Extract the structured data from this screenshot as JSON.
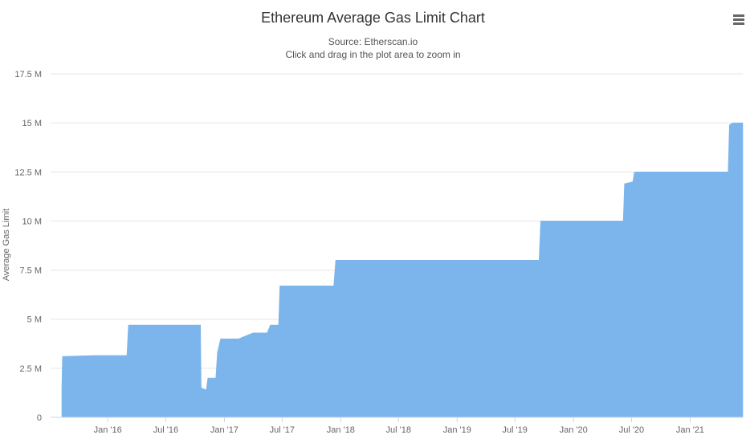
{
  "chart_data": {
    "type": "area",
    "title": "Ethereum Average Gas Limit Chart",
    "subtitle": [
      "Source: Etherscan.io",
      "Click and drag in the plot area to zoom in"
    ],
    "xlabel": "",
    "ylabel": "Average Gas Limit",
    "ylim": [
      0,
      17500000
    ],
    "xlim": [
      "2015-08-10",
      "2021-06-15"
    ],
    "grid": "horizontal",
    "legend": "none",
    "color": "#7cb5ec",
    "y_ticks": [
      {
        "value": 0,
        "label": "0"
      },
      {
        "value": 2500000,
        "label": "2.5 M"
      },
      {
        "value": 5000000,
        "label": "5 M"
      },
      {
        "value": 7500000,
        "label": "7.5 M"
      },
      {
        "value": 10000000,
        "label": "10 M"
      },
      {
        "value": 12500000,
        "label": "12.5 M"
      },
      {
        "value": 15000000,
        "label": "15 M"
      },
      {
        "value": 17500000,
        "label": "17.5 M"
      }
    ],
    "x_ticks": [
      {
        "date": "2016-01-01",
        "label": "Jan '16"
      },
      {
        "date": "2016-07-01",
        "label": "Jul '16"
      },
      {
        "date": "2017-01-01",
        "label": "Jan '17"
      },
      {
        "date": "2017-07-01",
        "label": "Jul '17"
      },
      {
        "date": "2018-01-01",
        "label": "Jan '18"
      },
      {
        "date": "2018-07-01",
        "label": "Jul '18"
      },
      {
        "date": "2019-01-01",
        "label": "Jan '19"
      },
      {
        "date": "2019-07-01",
        "label": "Jul '19"
      },
      {
        "date": "2020-01-01",
        "label": "Jan '20"
      },
      {
        "date": "2020-07-01",
        "label": "Jul '20"
      },
      {
        "date": "2021-01-01",
        "label": "Jan '21"
      }
    ],
    "series": [
      {
        "name": "Average Gas Limit",
        "points": [
          [
            "2015-08-10",
            1500000
          ],
          [
            "2015-08-12",
            3100000
          ],
          [
            "2015-11-20",
            3150000
          ],
          [
            "2016-03-01",
            3150000
          ],
          [
            "2016-03-06",
            4700000
          ],
          [
            "2016-10-18",
            4700000
          ],
          [
            "2016-10-20",
            1500000
          ],
          [
            "2016-11-05",
            1400000
          ],
          [
            "2016-11-10",
            2000000
          ],
          [
            "2016-12-05",
            2000000
          ],
          [
            "2016-12-10",
            3300000
          ],
          [
            "2016-12-20",
            4000000
          ],
          [
            "2017-02-15",
            4000000
          ],
          [
            "2017-03-01",
            4100000
          ],
          [
            "2017-04-01",
            4300000
          ],
          [
            "2017-05-15",
            4300000
          ],
          [
            "2017-05-25",
            4700000
          ],
          [
            "2017-06-20",
            4700000
          ],
          [
            "2017-06-24",
            6700000
          ],
          [
            "2017-12-10",
            6700000
          ],
          [
            "2017-12-16",
            8000000
          ],
          [
            "2019-09-15",
            8000000
          ],
          [
            "2019-09-20",
            10000000
          ],
          [
            "2020-06-05",
            10000000
          ],
          [
            "2020-06-09",
            11900000
          ],
          [
            "2020-07-05",
            12000000
          ],
          [
            "2020-07-10",
            12500000
          ],
          [
            "2021-04-30",
            12500000
          ],
          [
            "2021-05-04",
            14900000
          ],
          [
            "2021-05-15",
            15000000
          ],
          [
            "2021-06-15",
            15000000
          ]
        ]
      }
    ]
  },
  "menu": {
    "icon": "hamburger-menu-icon"
  }
}
